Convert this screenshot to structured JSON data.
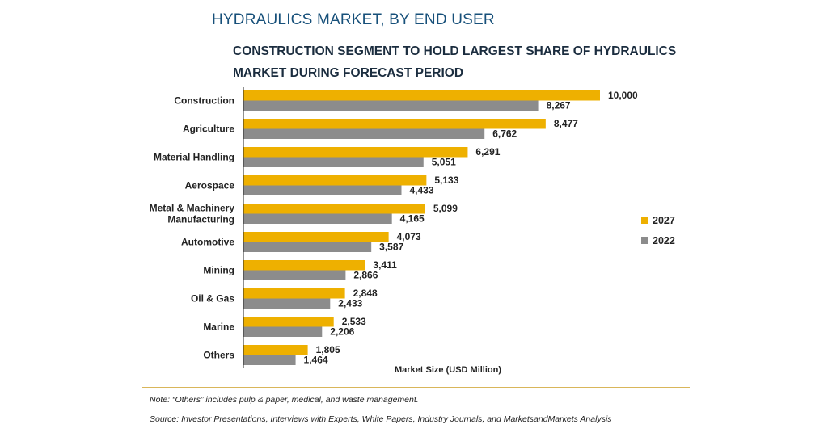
{
  "header": {
    "title": "HYDRAULICS MARKET, BY END USER",
    "subtitle": "CONSTRUCTION SEGMENT TO HOLD LARGEST SHARE OF HYDRAULICS MARKET DURING FORECAST PERIOD"
  },
  "colors": {
    "series_2027": "#eeb000",
    "series_2022": "#8c8c8c",
    "axis": "#222222"
  },
  "chart_data": {
    "type": "bar",
    "orientation": "horizontal",
    "categories": [
      "Construction",
      "Agriculture",
      "Material Handling",
      "Aerospace",
      "Metal & Machinery Manufacturing",
      "Automotive",
      "Mining",
      "Oil & Gas",
      "Marine",
      "Others"
    ],
    "category_lines": [
      [
        "Construction"
      ],
      [
        "Agriculture"
      ],
      [
        "Material Handling"
      ],
      [
        "Aerospace"
      ],
      [
        "Metal & Machinery",
        "Manufacturing"
      ],
      [
        "Automotive"
      ],
      [
        "Mining"
      ],
      [
        "Oil & Gas"
      ],
      [
        "Marine"
      ],
      [
        "Others"
      ]
    ],
    "series": [
      {
        "name": "2027",
        "values": [
          10000,
          8477,
          6291,
          5133,
          5099,
          4073,
          3411,
          2848,
          2533,
          1805
        ],
        "labels": [
          "10,000",
          "8,477",
          "6,291",
          "5,133",
          "5,099",
          "4,073",
          "3,411",
          "2,848",
          "2,533",
          "1,805"
        ]
      },
      {
        "name": "2022",
        "values": [
          8267,
          6762,
          5051,
          4433,
          4165,
          3587,
          2866,
          2433,
          2206,
          1464
        ],
        "labels": [
          "8,267",
          "6,762",
          "5,051",
          "4,433",
          "4,165",
          "3,587",
          "2,866",
          "2,433",
          "2,206",
          "1,464"
        ]
      }
    ],
    "xlabel": "Market Size (USD Million)",
    "xlim": [
      0,
      10000
    ],
    "grid": false,
    "legend": "right"
  },
  "footer": {
    "note": "Note: “Others” includes pulp & paper, medical, and waste management.",
    "source": "Source: Investor Presentations, Interviews with Experts, White Papers, Industry Journals, and MarketsandMarkets Analysis"
  }
}
